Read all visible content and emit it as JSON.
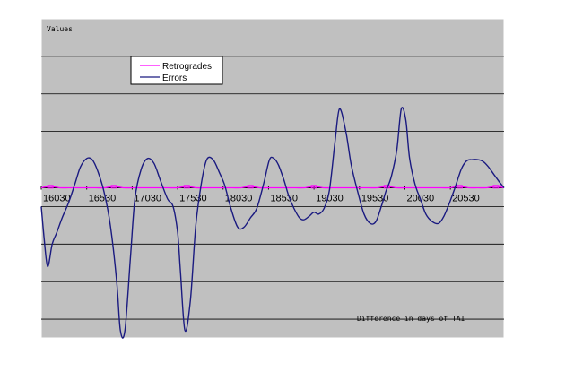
{
  "chart_data": {
    "type": "line",
    "title": "",
    "ylabel_text": "Values",
    "xlabel_text": "Difference in days of TAI",
    "xlabel": "",
    "ylabel": "",
    "x_ticks": [
      "16030",
      "16530",
      "17030",
      "17530",
      "18030",
      "18530",
      "19030",
      "19530",
      "20030",
      "20530"
    ],
    "grid": true,
    "legend_position": "top-left",
    "series": [
      {
        "name": "Retrogrades",
        "color": "#ff00ff",
        "x": [
          16030,
          16130,
          16230,
          16330,
          16430,
          16530,
          16630,
          16730,
          16830,
          16930,
          17030,
          17130,
          17230,
          17330,
          17430,
          17530,
          17630,
          17730,
          17830,
          17930,
          18030,
          18130,
          18230,
          18330,
          18430,
          18530,
          18630,
          18730,
          18830,
          18930,
          19030,
          19130,
          19230,
          19330,
          19430,
          19530,
          19630,
          19730,
          19830,
          19930,
          20030,
          20130,
          20230,
          20330,
          20430,
          20530,
          20630,
          20730,
          20830,
          20930,
          21030,
          21120
        ],
        "y": [
          0,
          0.04,
          0,
          0,
          0,
          0,
          0,
          0,
          0.04,
          0,
          0,
          0,
          0,
          0,
          0,
          0,
          0.04,
          0,
          0,
          0,
          0,
          0,
          0,
          0.04,
          0,
          0,
          0,
          0,
          0,
          0,
          0.04,
          0,
          0,
          0,
          0,
          0,
          0,
          0,
          0.04,
          0,
          0,
          0,
          0,
          0,
          0,
          0,
          0.04,
          0,
          0,
          0,
          0.04,
          0
        ]
      },
      {
        "name": "Errors",
        "color": "#1a1a80",
        "x": [
          16030,
          16060,
          16100,
          16150,
          16200,
          16260,
          16330,
          16400,
          16460,
          16530,
          16590,
          16650,
          16720,
          16790,
          16860,
          16900,
          16950,
          17010,
          17060,
          17130,
          17200,
          17270,
          17340,
          17420,
          17480,
          17530,
          17560,
          17610,
          17670,
          17730,
          17790,
          17850,
          17920,
          17990,
          18050,
          18110,
          18190,
          18260,
          18330,
          18400,
          18480,
          18540,
          18590,
          18640,
          18700,
          18750,
          18810,
          18870,
          18920,
          18980,
          19030,
          19080,
          19140,
          19200,
          19260,
          19310,
          19380,
          19440,
          19510,
          19580,
          19650,
          19710,
          19770,
          19820,
          19880,
          19940,
          19990,
          20040,
          20080,
          20140,
          20200,
          20260,
          20330,
          20400,
          20460,
          20520,
          20580,
          20650,
          20710,
          20770,
          20830,
          20890,
          20950,
          21010,
          21070,
          21120
        ],
        "y": [
          -0.5,
          -1.3,
          -2.1,
          -1.5,
          -1.2,
          -0.8,
          -0.4,
          0.1,
          0.55,
          0.78,
          0.75,
          0.45,
          -0.1,
          -1.0,
          -2.5,
          -3.8,
          -3.8,
          -1.9,
          -0.3,
          0.5,
          0.78,
          0.65,
          0.2,
          -0.3,
          -0.5,
          -1.2,
          -2.2,
          -3.8,
          -3.0,
          -1.0,
          0.1,
          0.75,
          0.75,
          0.4,
          0.05,
          -0.5,
          -1.05,
          -1.05,
          -0.8,
          -0.55,
          0.15,
          0.75,
          0.78,
          0.6,
          0.2,
          -0.2,
          -0.55,
          -0.8,
          -0.85,
          -0.75,
          -0.65,
          -0.7,
          -0.55,
          -0.05,
          1.2,
          2.1,
          1.5,
          0.6,
          -0.1,
          -0.7,
          -0.95,
          -0.9,
          -0.5,
          -0.1,
          0.3,
          1.0,
          2.1,
          1.8,
          0.8,
          0.1,
          -0.3,
          -0.7,
          -0.9,
          -0.95,
          -0.75,
          -0.4,
          0.0,
          0.5,
          0.72,
          0.75,
          0.75,
          0.7,
          0.55,
          0.35,
          0.15,
          0.0
        ]
      }
    ],
    "xlim": [
      16030,
      21120
    ],
    "ylim": [
      -4,
      4.5
    ],
    "y_grid_values": [
      -3.5,
      -2.5,
      -1.5,
      -0.5,
      0.5,
      1.5,
      2.5,
      3.5
    ]
  }
}
